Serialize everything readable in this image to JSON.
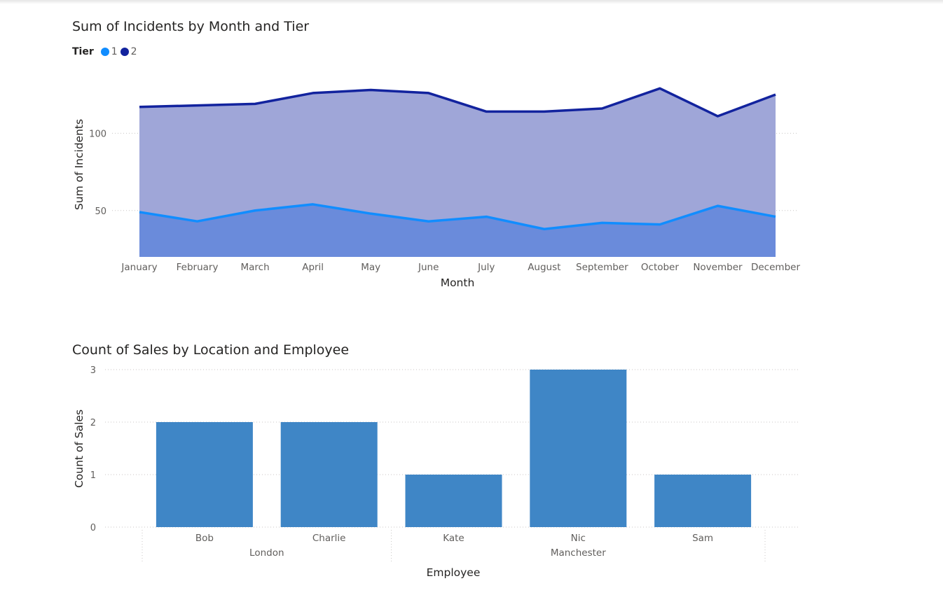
{
  "chart_data": [
    {
      "type": "area",
      "title": "Sum of Incidents by Month and Tier",
      "xlabel": "Month",
      "ylabel": "Sum of Incidents",
      "legend_title": "Tier",
      "legend_position": "top-left",
      "categories": [
        "January",
        "February",
        "March",
        "April",
        "May",
        "June",
        "July",
        "August",
        "September",
        "October",
        "November",
        "December"
      ],
      "y_ticks": [
        50,
        100
      ],
      "grid": true,
      "stacked": true,
      "series": [
        {
          "name": "1",
          "color": "#118dff",
          "fill": "#6a8bdb",
          "values": [
            49,
            43,
            50,
            54,
            48,
            43,
            46,
            38,
            42,
            41,
            53,
            46
          ]
        },
        {
          "name": "2",
          "color": "#12239e",
          "fill": "#9fa6d8",
          "values": [
            68,
            75,
            69,
            72,
            80,
            83,
            68,
            76,
            74,
            88,
            58,
            79
          ]
        }
      ]
    },
    {
      "type": "bar",
      "title": "Count of Sales by Location and Employee",
      "xlabel": "Employee",
      "ylabel": "Count of Sales",
      "categories": [
        "Bob",
        "Charlie",
        "Kate",
        "Nic",
        "Sam"
      ],
      "groups": [
        {
          "label": "London",
          "categories": [
            "Bob",
            "Charlie"
          ]
        },
        {
          "label": "Manchester",
          "categories": [
            "Kate",
            "Nic",
            "Sam"
          ]
        }
      ],
      "values": [
        2,
        2,
        1,
        3,
        1
      ],
      "y_ticks": [
        0,
        1,
        2,
        3
      ],
      "ylim": [
        0,
        3
      ],
      "grid": true,
      "color": "#3f86c6"
    }
  ]
}
